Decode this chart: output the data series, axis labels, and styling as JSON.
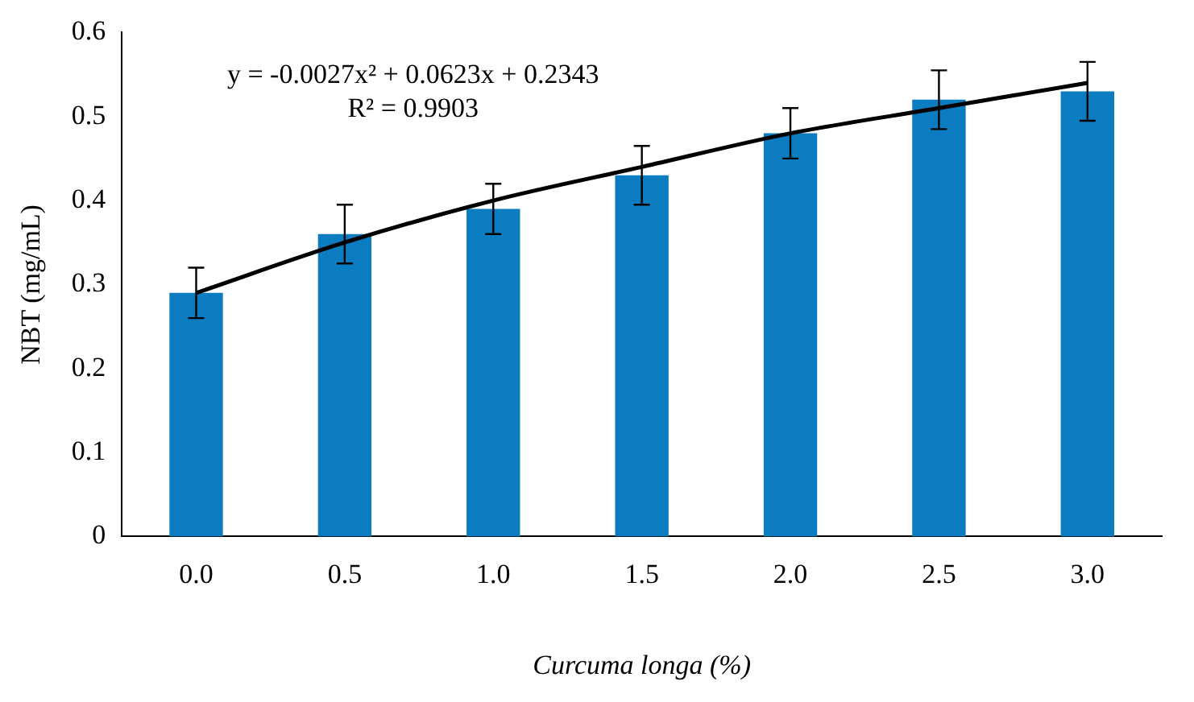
{
  "chart_data": {
    "type": "bar",
    "xlabel": "Curcuma longa (%)",
    "ylabel": "NBT (mg/mL)",
    "categories": [
      "0.0",
      "0.5",
      "1.0",
      "1.5",
      "2.0",
      "2.5",
      "3.0"
    ],
    "series": [
      {
        "color": "#0a7cbf",
        "values": [
          0.29,
          0.36,
          0.39,
          0.43,
          0.48,
          0.52,
          0.53
        ],
        "errors": [
          0.03,
          0.035,
          0.03,
          0.035,
          0.03,
          0.035,
          0.035
        ]
      },
      {
        "type": "line",
        "color": "#000000",
        "x": [
          "0.0",
          "0.5",
          "1.0",
          "1.5",
          "2.0",
          "2.5",
          "3.0"
        ],
        "values": [
          0.29,
          0.35,
          0.4,
          0.44,
          0.48,
          0.51,
          0.54
        ]
      }
    ],
    "ylim": [
      0,
      0.6
    ],
    "yticks": [
      0,
      0.1,
      0.2,
      0.3,
      0.4,
      0.5,
      0.6
    ],
    "grid": false,
    "legend": false,
    "marker": "none",
    "annotations": [
      "y = -0.0027x² + 0.0623x + 0.2343",
      "R² = 0.9903"
    ]
  }
}
